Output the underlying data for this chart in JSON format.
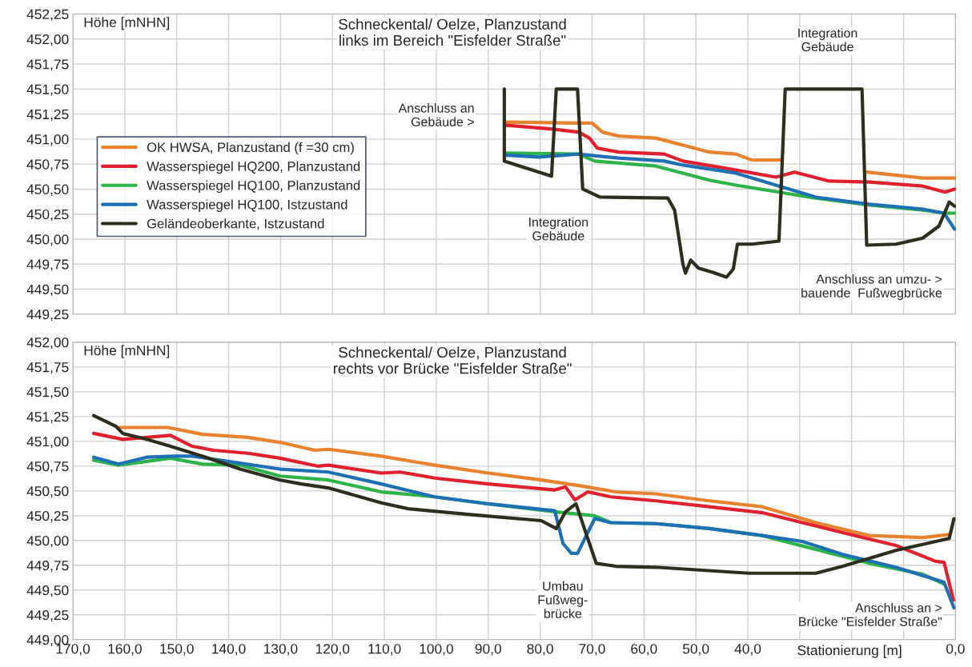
{
  "chart_data": [
    {
      "type": "line",
      "title": "Schneckental/ Oelze, Planzustand\nlinks im Bereich \"Eisfelder Straße\"",
      "ylabel": "Höhe [mNHN]",
      "xlim": [
        170,
        0
      ],
      "ylim": [
        449.25,
        452.25
      ],
      "xticks": [
        170,
        160,
        150,
        140,
        130,
        120,
        110,
        100,
        90,
        80,
        70,
        60,
        50,
        40,
        30,
        20,
        10,
        0
      ],
      "yticks": [
        {
          "value": 449.25,
          "label": "449,25"
        },
        {
          "value": 449.5,
          "label": "449,50"
        },
        {
          "value": 449.75,
          "label": "449,75"
        },
        {
          "value": 450.0,
          "label": "450,00"
        },
        {
          "value": 450.25,
          "label": "450,25"
        },
        {
          "value": 450.5,
          "label": "450,50"
        },
        {
          "value": 450.75,
          "label": "450,75"
        },
        {
          "value": 451.0,
          "label": "451,00"
        },
        {
          "value": 451.25,
          "label": "451,25"
        },
        {
          "value": 451.5,
          "label": "451,50"
        },
        {
          "value": 451.75,
          "label": "451,75"
        },
        {
          "value": 452.0,
          "label": "452,00"
        },
        {
          "value": 452.25,
          "label": "452,25"
        }
      ],
      "tick_labels": "y",
      "grid": true,
      "legend": "left",
      "line_style": "solid",
      "series": [
        {
          "name": "OK HWSA, Planzustand (f =30 cm)",
          "color": "#e8822e",
          "x": [
            86.9,
            73.1,
            70.0,
            68.0,
            64.9,
            57.7,
            52.5,
            47.4,
            42.3,
            39.2,
            33.8,
            25,
            17.1,
            6.3,
            0.2
          ],
          "values": [
            451.17,
            451.16,
            451.16,
            451.07,
            451.03,
            451.01,
            450.94,
            450.87,
            450.85,
            450.79,
            450.79,
            null,
            450.67,
            450.61,
            450.61
          ]
        },
        {
          "name": "Wasserspiegel HQ200, Planzustand",
          "color": "#e0202e",
          "x": [
            86.9,
            77.7,
            72.6,
            70.5,
            69.0,
            64.9,
            56.1,
            52.5,
            42.3,
            34.6,
            31.0,
            24.3,
            16.6,
            6.3,
            2.0,
            0.2
          ],
          "values": [
            451.14,
            451.1,
            451.07,
            451.01,
            450.91,
            450.87,
            450.85,
            450.78,
            450.69,
            450.62,
            450.67,
            450.58,
            450.57,
            450.53,
            450.47,
            450.5
          ]
        },
        {
          "name": "Wasserspiegel HQ100, Planzustand",
          "color": "#2db34a",
          "x": [
            86.9,
            72.6,
            69.5,
            57.7,
            47.4,
            42.3,
            34.0,
            26.9,
            16.6,
            6.3,
            2.2,
            0.2
          ],
          "values": [
            450.86,
            450.85,
            450.78,
            450.73,
            450.59,
            450.54,
            450.47,
            450.41,
            450.34,
            450.29,
            450.26,
            450.26
          ]
        },
        {
          "name": "Wasserspiegel HQ100, Istzustand",
          "color": "#1f6fb5",
          "x": [
            86.9,
            80.3,
            72.6,
            64.9,
            56.1,
            52.5,
            42.3,
            34.6,
            26.9,
            16.6,
            6.3,
            2.2,
            0.2
          ],
          "values": [
            450.84,
            450.82,
            450.85,
            450.81,
            450.78,
            450.74,
            450.66,
            450.54,
            450.42,
            450.35,
            450.3,
            450.26,
            450.1
          ]
        },
        {
          "name": "Geländeoberkante, Istzustand",
          "color": "#2e2e1e",
          "x": [
            86.9,
            86.9,
            77.8,
            76.9,
            72.8,
            71.8,
            68.5,
            55.4,
            54.1,
            52.5,
            52.0,
            51.0,
            49.5,
            46.9,
            44.1,
            42.8,
            42.0,
            39.2,
            34.0,
            32.8,
            18.0,
            17.1,
            11.4,
            6.3,
            3.2,
            1.2,
            0.2
          ],
          "values": [
            451.5,
            450.78,
            450.63,
            451.5,
            451.5,
            450.5,
            450.42,
            450.41,
            450.29,
            449.75,
            449.66,
            449.79,
            449.71,
            449.67,
            449.62,
            449.7,
            449.95,
            449.95,
            449.98,
            451.5,
            451.5,
            449.94,
            449.95,
            450.01,
            450.13,
            450.37,
            450.33
          ]
        }
      ],
      "annotations": [
        "Anschluss an\nGebäude >",
        "Integration\nGebäude",
        "Integration\nGebäude",
        "Anschluss an umzu- >\nbauende  Fußwegbrücke"
      ]
    },
    {
      "type": "line",
      "title": "Schneckental/ Oelze, Planzustand\nrechts vor Brücke \"Eisfelder Straße\"",
      "ylabel": "Höhe [mNHN]",
      "xlabel": "Stationierung [m]",
      "xlim": [
        170,
        0
      ],
      "ylim": [
        449.0,
        452.0
      ],
      "xticks": [
        {
          "value": 170,
          "label": "170,0"
        },
        {
          "value": 160,
          "label": "160,0"
        },
        {
          "value": 150,
          "label": "150,0"
        },
        {
          "value": 140,
          "label": "140,0"
        },
        {
          "value": 130,
          "label": "130,0"
        },
        {
          "value": 120,
          "label": "120,0"
        },
        {
          "value": 110,
          "label": "110,0"
        },
        {
          "value": 100,
          "label": "100,0"
        },
        {
          "value": 90,
          "label": "90,0"
        },
        {
          "value": 80,
          "label": "80,0"
        },
        {
          "value": 70,
          "label": "70,0"
        },
        {
          "value": 60,
          "label": "60,0"
        },
        {
          "value": 50,
          "label": "50,0"
        },
        {
          "value": 40,
          "label": "40,0"
        },
        {
          "value": 30,
          "label": null
        },
        {
          "value": 20,
          "label": null
        },
        {
          "value": 10,
          "label": null
        },
        {
          "value": 0,
          "label": "0,0"
        }
      ],
      "yticks": [
        {
          "value": 449.0,
          "label": "449,00"
        },
        {
          "value": 449.25,
          "label": "449,25"
        },
        {
          "value": 449.5,
          "label": "449,50"
        },
        {
          "value": 449.75,
          "label": "449,75"
        },
        {
          "value": 450.0,
          "label": "450,00"
        },
        {
          "value": 450.25,
          "label": "450,25"
        },
        {
          "value": 450.5,
          "label": "450,50"
        },
        {
          "value": 450.75,
          "label": "450,75"
        },
        {
          "value": 451.0,
          "label": "451,00"
        },
        {
          "value": 451.25,
          "label": "451,25"
        },
        {
          "value": 451.5,
          "label": "451,50"
        },
        {
          "value": 451.75,
          "label": "451,75"
        },
        {
          "value": 452.0,
          "label": "452,00"
        }
      ],
      "grid": true,
      "line_style": "solid",
      "series": [
        {
          "color": "#e8822e",
          "x": [
            161.4,
            151.7,
            145.0,
            136.3,
            130.1,
            123.4,
            120.8,
            110.6,
            100.3,
            90.0,
            79.8,
            72.1,
            65.4,
            57.7,
            47.4,
            37.2,
            26.9,
            16.6,
            6.3,
            1.2
          ],
          "values": [
            451.14,
            451.14,
            451.07,
            451.04,
            450.99,
            450.91,
            450.92,
            450.85,
            450.76,
            450.68,
            450.61,
            450.55,
            450.49,
            450.47,
            450.4,
            450.34,
            450.18,
            450.05,
            450.03,
            450.06
          ]
        },
        {
          "color": "#e0202e",
          "x": [
            166.0,
            160.4,
            155.8,
            151.2,
            147.0,
            142.9,
            136.3,
            130.1,
            122.9,
            120.8,
            110.6,
            107.0,
            100.3,
            90.0,
            77.2,
            75.1,
            73.3,
            70.8,
            66.4,
            57.7,
            47.4,
            37.2,
            29.5,
            21.7,
            11.5,
            3.8,
            2.2,
            0.4
          ],
          "values": [
            451.08,
            451.02,
            451.04,
            451.06,
            450.95,
            450.91,
            450.88,
            450.83,
            450.75,
            450.76,
            450.68,
            450.69,
            450.63,
            450.57,
            450.51,
            450.54,
            450.41,
            450.49,
            450.44,
            450.4,
            450.34,
            450.28,
            450.18,
            450.08,
            449.95,
            449.79,
            449.78,
            449.4
          ]
        },
        {
          "color": "#2db34a",
          "x": [
            166.0,
            161.2,
            151.2,
            145.0,
            137.8,
            130.1,
            120.8,
            110.6,
            100.3,
            90.0,
            77.2,
            69.5,
            66.4,
            57.7,
            47.4,
            37.2,
            26.9,
            16.6,
            6.3,
            2.2
          ],
          "values": [
            450.81,
            450.76,
            450.83,
            450.77,
            450.76,
            450.65,
            450.61,
            450.49,
            450.44,
            450.37,
            450.29,
            450.25,
            450.18,
            450.17,
            450.12,
            450.05,
            449.91,
            449.77,
            449.66,
            449.56
          ]
        },
        {
          "color": "#1f6fb5",
          "x": [
            166.0,
            161.2,
            155.8,
            150.6,
            147.0,
            140.4,
            130.1,
            120.8,
            110.6,
            100.3,
            90.0,
            77.2,
            75.6,
            74.0,
            72.8,
            69.5,
            66.4,
            57.7,
            47.4,
            37.2,
            29.5,
            21.7,
            11.5,
            2.2,
            0.3
          ],
          "values": [
            450.84,
            450.77,
            450.84,
            450.85,
            450.85,
            450.8,
            450.72,
            450.69,
            450.57,
            450.44,
            450.37,
            450.3,
            449.97,
            449.87,
            449.87,
            450.22,
            450.18,
            450.17,
            450.12,
            450.05,
            449.99,
            449.86,
            449.73,
            449.58,
            449.32
          ]
        },
        {
          "color": "#2e2e1e",
          "x": [
            166.0,
            161.7,
            160.4,
            155.8,
            151.2,
            145.0,
            137.8,
            130.1,
            126.0,
            120.8,
            110.6,
            105.4,
            93.1,
            79.8,
            76.9,
            75.1,
            73.1,
            69.2,
            65.4,
            57.7,
            39.7,
            26.9,
            21.7,
            11.5,
            1.2,
            0.3
          ],
          "values": [
            451.26,
            451.15,
            451.08,
            451.02,
            450.95,
            450.85,
            450.72,
            450.61,
            450.57,
            450.53,
            450.38,
            450.32,
            450.26,
            450.2,
            450.12,
            450.29,
            450.37,
            449.77,
            449.74,
            449.73,
            449.67,
            449.67,
            449.74,
            449.9,
            450.02,
            450.22
          ]
        }
      ],
      "annotations": [
        "Umbau\nFußweg-\nbrücke",
        "Anschluss an >\nBrücke \"Eisfelder Straße\""
      ]
    }
  ]
}
